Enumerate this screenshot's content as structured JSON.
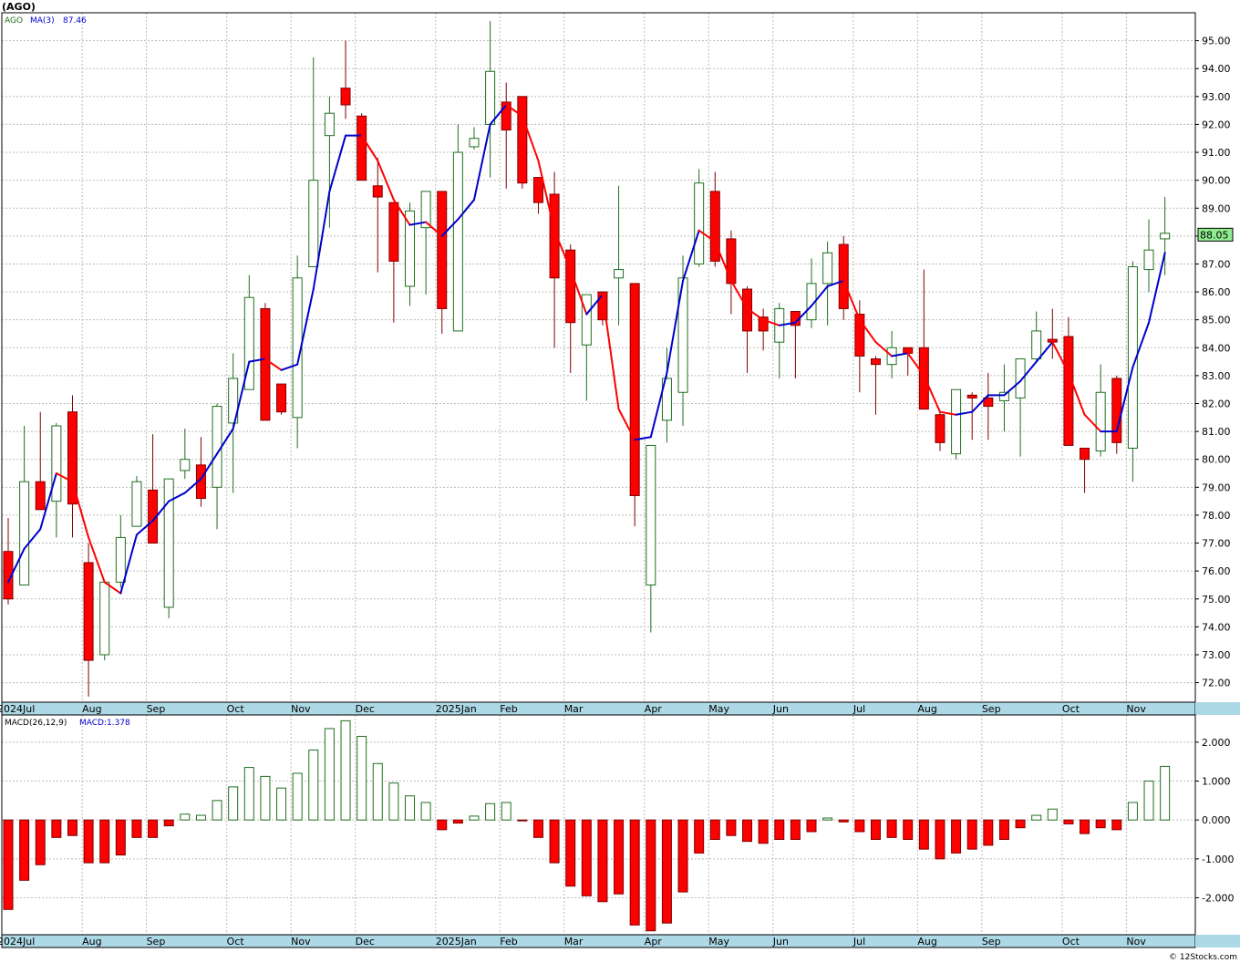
{
  "header": {
    "title": "(AGO)",
    "legend_symbol": "AGO",
    "legend_ma": "MA(3)",
    "legend_ma_value": "87.46",
    "macd_label": "MACD(26,12,9)",
    "macd_value_label": "MACD:1.378",
    "last_price": "88.05",
    "watermark": "© 12Stocks.com"
  },
  "colors": {
    "up_candle": "#1f6f1f",
    "down_candle": "#ff0000",
    "ma_up": "#0000cc",
    "ma_down": "#ff0000",
    "axis_strip": "#add8e6",
    "grid": "#bbbbbb",
    "price_box": "#90ee90"
  },
  "chart_data": [
    {
      "type": "candlestick",
      "symbol": "AGO",
      "interval": "weekly",
      "ylim": [
        71.3,
        96.0
      ],
      "yticks": [
        "72.00",
        "73.00",
        "74.00",
        "75.00",
        "76.00",
        "77.00",
        "78.00",
        "79.00",
        "80.00",
        "81.00",
        "82.00",
        "83.00",
        "84.00",
        "85.00",
        "86.00",
        "87.00",
        "88.00",
        "89.00",
        "90.00",
        "91.00",
        "92.00",
        "93.00",
        "94.00",
        "95.00"
      ],
      "x_labels": [
        {
          "label": "2024Jul",
          "index": 0
        },
        {
          "label": "Aug",
          "index": 5
        },
        {
          "label": "Sep",
          "index": 9
        },
        {
          "label": "Oct",
          "index": 14
        },
        {
          "label": "Nov",
          "index": 18
        },
        {
          "label": "Dec",
          "index": 22
        },
        {
          "label": "2025Jan",
          "index": 27
        },
        {
          "label": "Feb",
          "index": 31
        },
        {
          "label": "Mar",
          "index": 35
        },
        {
          "label": "Apr",
          "index": 40
        },
        {
          "label": "May",
          "index": 44
        },
        {
          "label": "Jun",
          "index": 48
        },
        {
          "label": "Jul",
          "index": 53
        },
        {
          "label": "Aug",
          "index": 57
        },
        {
          "label": "Sep",
          "index": 61
        },
        {
          "label": "Oct",
          "index": 66
        },
        {
          "label": "Nov",
          "index": 70
        }
      ],
      "candles": [
        {
          "o": 76.7,
          "h": 77.9,
          "l": 74.8,
          "c": 75.0
        },
        {
          "o": 75.5,
          "h": 81.2,
          "l": 75.5,
          "c": 79.2
        },
        {
          "o": 79.2,
          "h": 81.7,
          "l": 78.2,
          "c": 78.2
        },
        {
          "o": 78.5,
          "h": 81.3,
          "l": 77.2,
          "c": 81.2
        },
        {
          "o": 81.7,
          "h": 82.3,
          "l": 77.2,
          "c": 78.4
        },
        {
          "o": 76.3,
          "h": 77.0,
          "l": 71.5,
          "c": 72.8
        },
        {
          "o": 73.0,
          "h": 75.6,
          "l": 72.8,
          "c": 75.6
        },
        {
          "o": 75.6,
          "h": 78.0,
          "l": 75.4,
          "c": 77.2
        },
        {
          "o": 77.6,
          "h": 79.4,
          "l": 77.6,
          "c": 79.2
        },
        {
          "o": 78.9,
          "h": 80.9,
          "l": 77.0,
          "c": 77.0
        },
        {
          "o": 74.7,
          "h": 79.3,
          "l": 74.3,
          "c": 79.3
        },
        {
          "o": 79.6,
          "h": 81.1,
          "l": 79.3,
          "c": 80.0
        },
        {
          "o": 79.8,
          "h": 80.8,
          "l": 78.3,
          "c": 78.6
        },
        {
          "o": 79.0,
          "h": 82.0,
          "l": 77.5,
          "c": 81.9
        },
        {
          "o": 81.3,
          "h": 83.8,
          "l": 78.8,
          "c": 82.9
        },
        {
          "o": 82.5,
          "h": 86.6,
          "l": 82.5,
          "c": 85.8
        },
        {
          "o": 85.4,
          "h": 85.6,
          "l": 81.6,
          "c": 81.4
        },
        {
          "o": 82.7,
          "h": 82.7,
          "l": 81.6,
          "c": 81.7
        },
        {
          "o": 81.5,
          "h": 87.3,
          "l": 80.4,
          "c": 86.5
        },
        {
          "o": 86.9,
          "h": 94.4,
          "l": 86.9,
          "c": 90.0
        },
        {
          "o": 91.6,
          "h": 93.0,
          "l": 88.3,
          "c": 92.4
        },
        {
          "o": 93.3,
          "h": 95.0,
          "l": 92.2,
          "c": 92.7
        },
        {
          "o": 92.3,
          "h": 92.4,
          "l": 90.0,
          "c": 90.0
        },
        {
          "o": 89.8,
          "h": 90.8,
          "l": 86.7,
          "c": 89.4
        },
        {
          "o": 89.2,
          "h": 89.2,
          "l": 84.9,
          "c": 87.1
        },
        {
          "o": 86.2,
          "h": 89.2,
          "l": 85.5,
          "c": 88.9
        },
        {
          "o": 88.3,
          "h": 89.5,
          "l": 85.9,
          "c": 89.6
        },
        {
          "o": 89.6,
          "h": 89.6,
          "l": 84.5,
          "c": 85.4
        },
        {
          "o": 84.6,
          "h": 92.0,
          "l": 84.6,
          "c": 91.0
        },
        {
          "o": 91.2,
          "h": 91.9,
          "l": 91.1,
          "c": 91.5
        },
        {
          "o": 92.0,
          "h": 95.7,
          "l": 90.1,
          "c": 93.9
        },
        {
          "o": 92.8,
          "h": 93.5,
          "l": 89.7,
          "c": 91.8
        },
        {
          "o": 93.0,
          "h": 93.0,
          "l": 89.7,
          "c": 89.9
        },
        {
          "o": 90.1,
          "h": 90.1,
          "l": 88.8,
          "c": 89.2
        },
        {
          "o": 89.5,
          "h": 90.3,
          "l": 84.0,
          "c": 86.5
        },
        {
          "o": 87.5,
          "h": 87.7,
          "l": 83.1,
          "c": 84.9
        },
        {
          "o": 84.1,
          "h": 85.8,
          "l": 82.1,
          "c": 85.9
        },
        {
          "o": 86.0,
          "h": 86.0,
          "l": 84.8,
          "c": 85.0
        },
        {
          "o": 86.5,
          "h": 89.8,
          "l": 84.8,
          "c": 86.8
        },
        {
          "o": 86.3,
          "h": 86.3,
          "l": 77.6,
          "c": 78.7
        },
        {
          "o": 75.5,
          "h": 80.5,
          "l": 73.8,
          "c": 80.5
        },
        {
          "o": 81.4,
          "h": 84.0,
          "l": 80.6,
          "c": 82.9
        },
        {
          "o": 82.4,
          "h": 87.3,
          "l": 81.2,
          "c": 86.5
        },
        {
          "o": 87.0,
          "h": 90.4,
          "l": 86.9,
          "c": 89.9
        },
        {
          "o": 89.6,
          "h": 90.3,
          "l": 86.9,
          "c": 87.1
        },
        {
          "o": 87.9,
          "h": 88.2,
          "l": 85.2,
          "c": 86.3
        },
        {
          "o": 86.1,
          "h": 86.2,
          "l": 83.1,
          "c": 84.6
        },
        {
          "o": 85.1,
          "h": 85.4,
          "l": 83.9,
          "c": 84.6
        },
        {
          "o": 84.2,
          "h": 85.6,
          "l": 82.9,
          "c": 85.4
        },
        {
          "o": 85.3,
          "h": 85.3,
          "l": 82.9,
          "c": 84.8
        },
        {
          "o": 85.0,
          "h": 87.2,
          "l": 84.7,
          "c": 86.3
        },
        {
          "o": 86.3,
          "h": 87.8,
          "l": 84.8,
          "c": 87.4
        },
        {
          "o": 87.7,
          "h": 88.0,
          "l": 85.0,
          "c": 85.4
        },
        {
          "o": 85.2,
          "h": 85.7,
          "l": 82.4,
          "c": 83.7
        },
        {
          "o": 83.6,
          "h": 83.7,
          "l": 81.6,
          "c": 83.4
        },
        {
          "o": 83.4,
          "h": 84.6,
          "l": 82.9,
          "c": 84.0
        },
        {
          "o": 84.0,
          "h": 84.0,
          "l": 83.0,
          "c": 83.8
        },
        {
          "o": 84.0,
          "h": 86.8,
          "l": 81.8,
          "c": 81.8
        },
        {
          "o": 81.6,
          "h": 81.7,
          "l": 80.3,
          "c": 80.6
        },
        {
          "o": 80.2,
          "h": 82.5,
          "l": 80.0,
          "c": 82.5
        },
        {
          "o": 82.3,
          "h": 82.4,
          "l": 80.7,
          "c": 82.2
        },
        {
          "o": 82.2,
          "h": 83.1,
          "l": 80.7,
          "c": 81.9
        },
        {
          "o": 82.1,
          "h": 83.4,
          "l": 81.0,
          "c": 82.4
        },
        {
          "o": 82.2,
          "h": 83.5,
          "l": 80.1,
          "c": 83.6
        },
        {
          "o": 83.6,
          "h": 85.3,
          "l": 83.5,
          "c": 84.6
        },
        {
          "o": 84.3,
          "h": 85.4,
          "l": 83.6,
          "c": 84.2
        },
        {
          "o": 84.4,
          "h": 85.1,
          "l": 80.5,
          "c": 80.5
        },
        {
          "o": 80.4,
          "h": 80.4,
          "l": 78.8,
          "c": 80.0
        },
        {
          "o": 80.3,
          "h": 83.4,
          "l": 80.1,
          "c": 82.4
        },
        {
          "o": 82.9,
          "h": 83.0,
          "l": 80.2,
          "c": 80.6
        },
        {
          "o": 80.4,
          "h": 87.1,
          "l": 79.2,
          "c": 86.9
        },
        {
          "o": 86.8,
          "h": 88.6,
          "l": 86.0,
          "c": 87.5
        },
        {
          "o": 87.9,
          "h": 89.4,
          "l": 86.6,
          "c": 88.1
        }
      ],
      "ma": [
        75.6,
        76.8,
        77.5,
        79.5,
        79.2,
        77.2,
        75.6,
        75.2,
        77.3,
        77.8,
        78.5,
        78.8,
        79.3,
        80.2,
        81.1,
        83.5,
        83.6,
        83.2,
        83.4,
        86.1,
        89.6,
        91.6,
        91.6,
        90.7,
        89.3,
        88.4,
        88.5,
        88.0,
        88.6,
        89.3,
        92.0,
        92.7,
        92.3,
        90.7,
        88.2,
        86.8,
        85.2,
        85.9,
        81.8,
        80.7,
        80.8,
        83.1,
        86.4,
        88.2,
        87.8,
        86.4,
        85.4,
        85.0,
        84.8,
        84.9,
        85.5,
        86.2,
        86.4,
        85.0,
        84.2,
        83.7,
        83.8,
        83.0,
        81.7,
        81.6,
        81.7,
        82.3,
        82.3,
        82.8,
        83.5,
        84.2,
        83.1,
        81.6,
        81.0,
        81.0,
        83.3,
        84.9,
        87.4
      ],
      "last_price": 88.05
    },
    {
      "type": "bar",
      "title": "MACD(26,12,9)",
      "ylim": [
        -2.95,
        2.7
      ],
      "yticks": [
        "-2.000",
        "-1.000",
        "0.000",
        "1.000",
        "2.000"
      ],
      "values": [
        -2.3,
        -1.55,
        -1.15,
        -0.45,
        -0.4,
        -1.1,
        -1.1,
        -0.9,
        -0.45,
        -0.45,
        -0.15,
        0.15,
        0.12,
        0.5,
        0.85,
        1.35,
        1.12,
        0.82,
        1.2,
        1.8,
        2.35,
        2.55,
        2.15,
        1.45,
        0.95,
        0.62,
        0.45,
        -0.25,
        -0.08,
        0.1,
        0.42,
        0.45,
        -0.02,
        -0.45,
        -1.1,
        -1.7,
        -1.95,
        -2.1,
        -1.9,
        -2.7,
        -2.85,
        -2.65,
        -1.85,
        -0.85,
        -0.5,
        -0.4,
        -0.55,
        -0.6,
        -0.5,
        -0.5,
        -0.3,
        0.05,
        -0.05,
        -0.3,
        -0.5,
        -0.45,
        -0.5,
        -0.75,
        -1.0,
        -0.85,
        -0.75,
        -0.65,
        -0.5,
        -0.2,
        0.12,
        0.28,
        -0.1,
        -0.35,
        -0.2,
        -0.25,
        0.45,
        1.0,
        1.378
      ]
    }
  ]
}
